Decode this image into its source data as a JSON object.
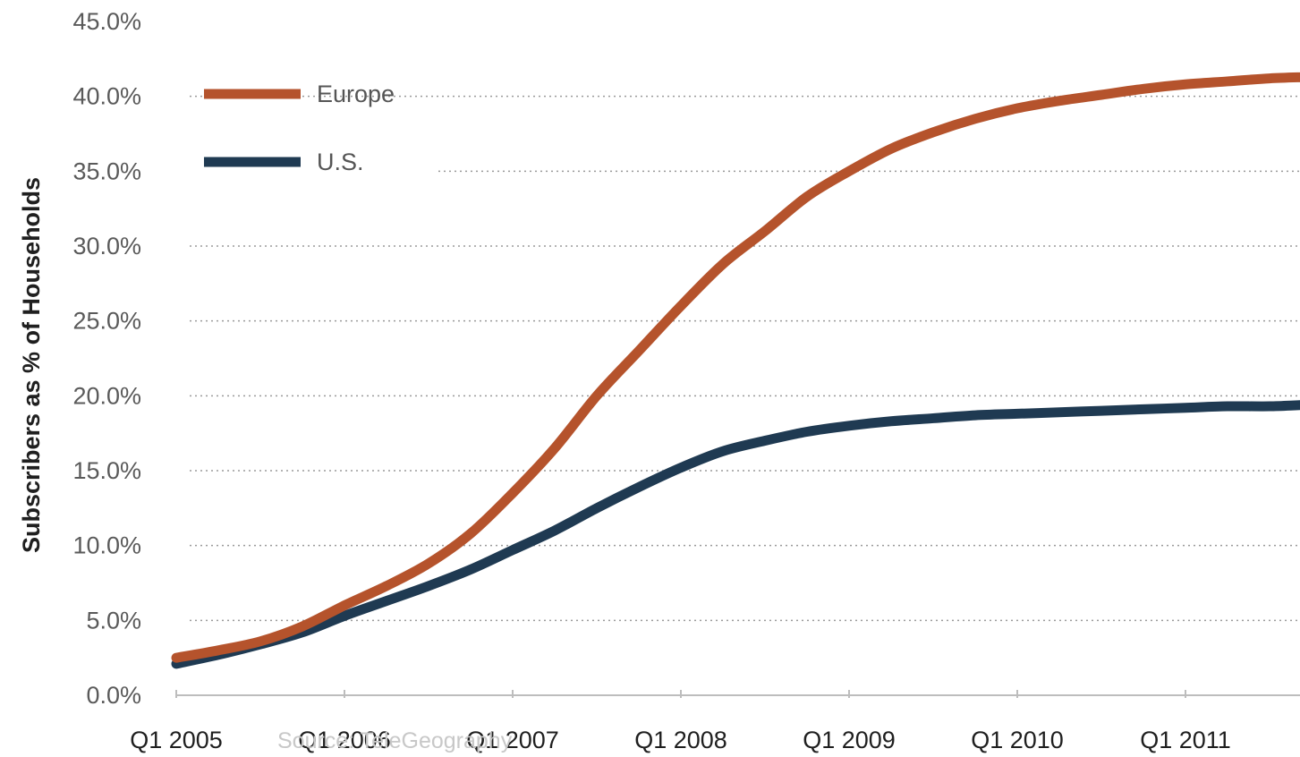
{
  "chart_data": {
    "type": "line",
    "ylabel": "Subscribers as % of Households",
    "xlabel": "",
    "source": "Source: TeleGeography",
    "x": [
      "Q1 2005",
      "Q1 2006",
      "Q1 2007",
      "Q1 2008",
      "Q1 2009",
      "Q1 2010",
      "Q1 2011"
    ],
    "yticks": [
      "0.0%",
      "5.0%",
      "10.0%",
      "15.0%",
      "20.0%",
      "25.0%",
      "30.0%",
      "35.0%",
      "40.0%",
      "45.0%"
    ],
    "ylim": [
      0,
      45
    ],
    "grid": true,
    "legend_position": "top-left",
    "series": [
      {
        "name": "Europe",
        "color": "#b5532c",
        "points": [
          [
            2005.0,
            2.5
          ],
          [
            2005.25,
            3.0
          ],
          [
            2005.5,
            3.6
          ],
          [
            2005.75,
            4.6
          ],
          [
            2006.0,
            6.0
          ],
          [
            2006.25,
            7.3
          ],
          [
            2006.5,
            8.8
          ],
          [
            2006.75,
            10.8
          ],
          [
            2007.0,
            13.5
          ],
          [
            2007.25,
            16.5
          ],
          [
            2007.5,
            20.0
          ],
          [
            2007.75,
            23.0
          ],
          [
            2008.0,
            26.0
          ],
          [
            2008.25,
            28.8
          ],
          [
            2008.5,
            31.0
          ],
          [
            2008.75,
            33.3
          ],
          [
            2009.0,
            35.0
          ],
          [
            2009.25,
            36.5
          ],
          [
            2009.5,
            37.6
          ],
          [
            2009.75,
            38.5
          ],
          [
            2010.0,
            39.2
          ],
          [
            2010.25,
            39.7
          ],
          [
            2010.5,
            40.1
          ],
          [
            2010.75,
            40.5
          ],
          [
            2011.0,
            40.8
          ],
          [
            2011.25,
            41.0
          ],
          [
            2011.5,
            41.2
          ],
          [
            2011.75,
            41.3
          ],
          [
            2012.0,
            41.4
          ]
        ]
      },
      {
        "name": "U.S.",
        "color": "#1f3a52",
        "points": [
          [
            2005.0,
            2.1
          ],
          [
            2005.25,
            2.7
          ],
          [
            2005.5,
            3.4
          ],
          [
            2005.75,
            4.2
          ],
          [
            2006.0,
            5.3
          ],
          [
            2006.25,
            6.3
          ],
          [
            2006.5,
            7.3
          ],
          [
            2006.75,
            8.4
          ],
          [
            2007.0,
            9.7
          ],
          [
            2007.25,
            11.0
          ],
          [
            2007.5,
            12.5
          ],
          [
            2007.75,
            13.9
          ],
          [
            2008.0,
            15.2
          ],
          [
            2008.25,
            16.3
          ],
          [
            2008.5,
            17.0
          ],
          [
            2008.75,
            17.6
          ],
          [
            2009.0,
            18.0
          ],
          [
            2009.25,
            18.3
          ],
          [
            2009.5,
            18.5
          ],
          [
            2009.75,
            18.7
          ],
          [
            2010.0,
            18.8
          ],
          [
            2010.25,
            18.9
          ],
          [
            2010.5,
            19.0
          ],
          [
            2010.75,
            19.1
          ],
          [
            2011.0,
            19.2
          ],
          [
            2011.25,
            19.3
          ],
          [
            2011.5,
            19.3
          ],
          [
            2011.75,
            19.4
          ],
          [
            2012.0,
            19.4
          ]
        ]
      }
    ]
  }
}
